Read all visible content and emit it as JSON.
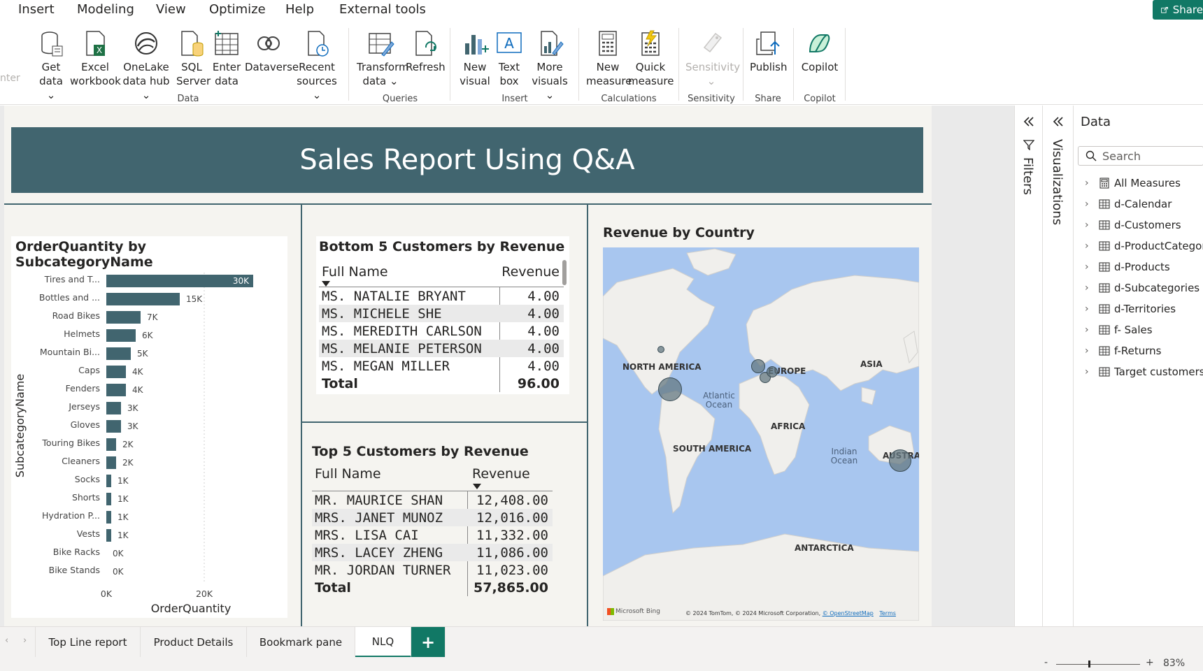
{
  "menu": {
    "items": [
      "Insert",
      "Modeling",
      "View",
      "Optimize",
      "Help",
      "External tools"
    ],
    "share_label": "Share"
  },
  "ribbon": {
    "cut_label": "nter",
    "buttons": [
      {
        "l1": "Get",
        "l2": "data ⌄",
        "icon": "database-icon"
      },
      {
        "l1": "Excel",
        "l2": "workbook",
        "icon": "excel-icon"
      },
      {
        "l1": "OneLake",
        "l2": "data hub ⌄",
        "icon": "onelake-icon"
      },
      {
        "l1": "SQL",
        "l2": "Server",
        "icon": "sql-server-icon"
      },
      {
        "l1": "Enter",
        "l2": "data",
        "icon": "table-icon"
      },
      {
        "l1": "Dataverse",
        "l2": "",
        "icon": "dataverse-icon"
      },
      {
        "l1": "Recent",
        "l2": "sources ⌄",
        "icon": "recent-icon"
      },
      {
        "l1": "Transform",
        "l2": "data ⌄",
        "icon": "transform-icon"
      },
      {
        "l1": "Refresh",
        "l2": "",
        "icon": "refresh-icon"
      },
      {
        "l1": "New",
        "l2": "visual",
        "icon": "new-visual-icon"
      },
      {
        "l1": "Text",
        "l2": "box",
        "icon": "text-box-icon"
      },
      {
        "l1": "More",
        "l2": "visuals ⌄",
        "icon": "more-visuals-icon"
      },
      {
        "l1": "New",
        "l2": "measure",
        "icon": "calculator-icon"
      },
      {
        "l1": "Quick",
        "l2": "measure",
        "icon": "quick-measure-icon"
      },
      {
        "l1": "Sensitivity",
        "l2": "⌄",
        "icon": "sensitivity-icon"
      },
      {
        "l1": "Publish",
        "l2": "",
        "icon": "publish-icon"
      },
      {
        "l1": "Copilot",
        "l2": "",
        "icon": "copilot-icon"
      }
    ],
    "groups": [
      "Data",
      "Queries",
      "Insert",
      "Calculations",
      "Sensitivity",
      "Share",
      "Copilot"
    ]
  },
  "report": {
    "banner_title": "Sales Report Using Q&A",
    "bar_title": "OrderQuantity by SubcategoryName",
    "bottom_title": "Bottom 5 Customers by Revenue",
    "top_title": "Top 5 Customers by Revenue",
    "map_title": "Revenue by Country"
  },
  "chart_data": {
    "type": "bar",
    "orientation": "horizontal",
    "title": "OrderQuantity by SubcategoryName",
    "xlabel": "OrderQuantity",
    "ylabel": "SubcategoryName",
    "xlim": [
      0,
      30000
    ],
    "xticks": [
      "0K",
      "20K"
    ],
    "categories": [
      "Tires and T...",
      "Bottles and ...",
      "Road Bikes",
      "Helmets",
      "Mountain Bi...",
      "Caps",
      "Fenders",
      "Jerseys",
      "Gloves",
      "Touring Bikes",
      "Cleaners",
      "Socks",
      "Shorts",
      "Hydration P...",
      "Vests",
      "Bike Racks",
      "Bike Stands"
    ],
    "values": [
      30000,
      15000,
      7000,
      6000,
      5000,
      4000,
      4000,
      3000,
      3000,
      2000,
      2000,
      1000,
      1000,
      1000,
      1000,
      0,
      0
    ],
    "labels": [
      "30K",
      "15K",
      "7K",
      "6K",
      "5K",
      "4K",
      "4K",
      "3K",
      "3K",
      "2K",
      "2K",
      "1K",
      "1K",
      "1K",
      "1K",
      "0K",
      "0K"
    ],
    "bar_color": "#41656f"
  },
  "bottom_table": {
    "col1": "Full Name",
    "col2": "Revenue",
    "rows": [
      {
        "name": "MS. NATALIE BRYANT",
        "rev": "4.00"
      },
      {
        "name": "MS. MICHELE SHE",
        "rev": "4.00"
      },
      {
        "name": "MS. MEREDITH CARLSON",
        "rev": "4.00"
      },
      {
        "name": "MS. MELANIE PETERSON",
        "rev": "4.00"
      },
      {
        "name": "MS. MEGAN MILLER",
        "rev": "4.00"
      }
    ],
    "total_label": "Total",
    "total": "96.00"
  },
  "top_table": {
    "col1": "Full Name",
    "col2": "Revenue",
    "rows": [
      {
        "name": "MR. MAURICE SHAN",
        "rev": "12,408.00"
      },
      {
        "name": "MRS. JANET MUNOZ",
        "rev": "12,016.00"
      },
      {
        "name": "MRS. LISA CAI",
        "rev": "11,332.00"
      },
      {
        "name": "MRS. LACEY ZHENG",
        "rev": "11,086.00"
      },
      {
        "name": "MR. JORDAN TURNER",
        "rev": "11,023.00"
      }
    ],
    "total_label": "Total",
    "total": "57,865.00"
  },
  "map": {
    "continents": [
      "NORTH AMERICA",
      "EUROPE",
      "ASIA",
      "AFRICA",
      "SOUTH AMERICA",
      "AUSTRAL",
      "ANTARCTICA"
    ],
    "oceans": [
      "Atlantic Ocean",
      "Indian Ocean"
    ],
    "bing": "Microsoft Bing",
    "copyright": "© 2024 TomTom, © 2024 Microsoft Corporation,",
    "osm": "© OpenStreetMap",
    "terms": "Terms"
  },
  "panes": {
    "filters": "Filters",
    "visualizations": "Visualizations",
    "data_title": "Data",
    "search_placeholder": "Search",
    "fields": [
      {
        "label": "All Measures",
        "icon": "calculator-icon"
      },
      {
        "label": "d-Calendar",
        "icon": "table-icon"
      },
      {
        "label": "d-Customers",
        "icon": "table-icon"
      },
      {
        "label": "d-ProductCategories",
        "icon": "table-icon"
      },
      {
        "label": "d-Products",
        "icon": "table-icon"
      },
      {
        "label": "d-Subcategories",
        "icon": "table-icon"
      },
      {
        "label": "d-Territories",
        "icon": "table-icon"
      },
      {
        "label": "f- Sales",
        "icon": "table-icon"
      },
      {
        "label": "f-Returns",
        "icon": "table-icon"
      },
      {
        "label": "Target customers",
        "icon": "table-icon"
      }
    ]
  },
  "tabs": {
    "items": [
      "Top Line report",
      "Product Details",
      "Bookmark pane",
      "NLQ"
    ],
    "active": "NLQ",
    "add": "+"
  },
  "status": {
    "zoom": "83%",
    "minus": "-",
    "plus": "+"
  },
  "colors": {
    "accent": "#117865",
    "theme": "#41656f",
    "map_water": "#a8c6ef"
  }
}
